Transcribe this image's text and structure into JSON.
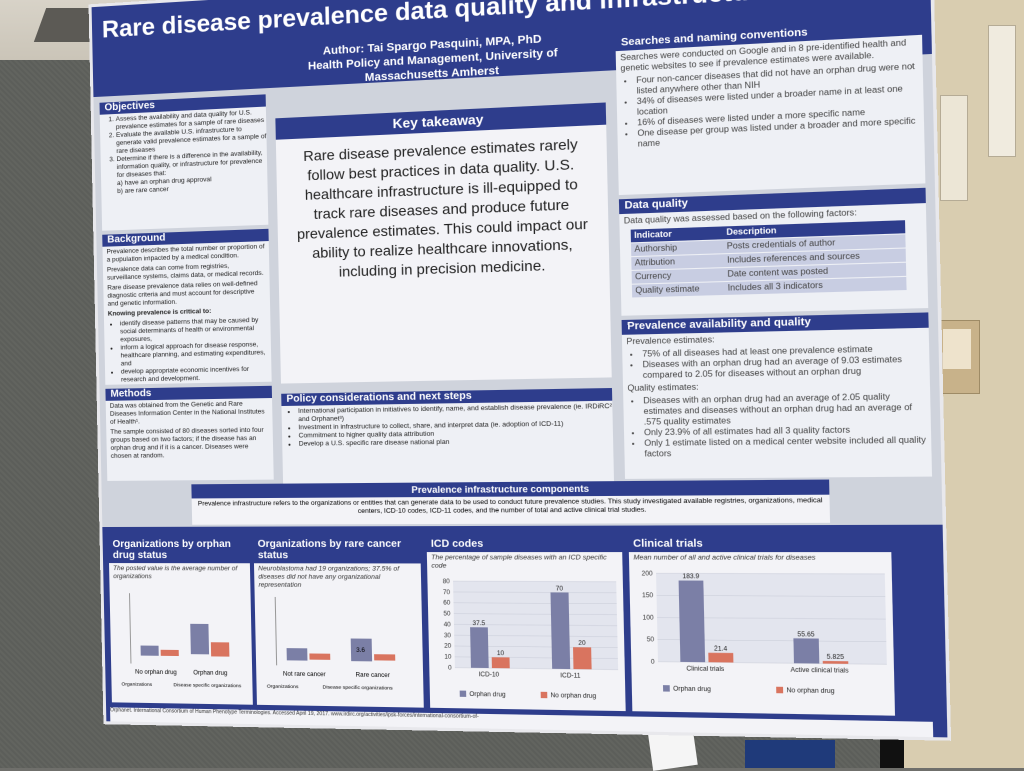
{
  "poster": {
    "title": "Rare disease prevalence data quality and infrastructure in the United States",
    "author": "Author: Tai Spargo Pasquini, MPA, PhD",
    "affiliation": "Health Policy and Management, University of Massachusetts Amherst"
  },
  "objectives": {
    "heading": "Objectives",
    "items": [
      "Assess the availability and data quality for U.S. prevalence estimates for a sample of rare diseases",
      "Evaluate the available U.S. infrastructure to generate valid prevalence estimates for a sample of rare diseases",
      "Determine if there is a difference in the availability, information quality, or infrastructure for prevalence for diseases that:",
      "a) have an orphan drug approval",
      "b) are rare cancer"
    ]
  },
  "background": {
    "heading": "Background",
    "paragraphs": [
      "Prevalence describes the total number or proportion of a population impacted by a medical condition.",
      "Prevalence data can come from registries, surveillance systems, claims data, or medical records.",
      "Rare disease prevalence data relies on well-defined diagnostic criteria and must account for descriptive and genetic information.",
      "Knowing prevalence is critical to:"
    ],
    "bullets": [
      "identify disease patterns that may be caused by social determinants of health or environmental exposures,",
      "inform a logical approach for disease response, healthcare planning, and estimating expenditures, and",
      "develop appropriate economic incentives for research and development."
    ]
  },
  "methods": {
    "heading": "Methods",
    "paragraphs": [
      "Data was obtained from the Genetic and Rare Diseases Information Center in the National Institutes of Health¹.",
      "The sample consisted of 80 diseases sorted into four groups based on two factors; if the disease has an orphan drug and if it is a cancer. Diseases were chosen at random."
    ]
  },
  "key_takeaway": {
    "heading": "Key takeaway",
    "text": "Rare disease prevalence estimates rarely follow best practices in data quality. U.S. healthcare infrastructure is ill-equipped to track rare diseases and produce future prevalence estimates. This could impact our ability to realize healthcare innovations, including in precision medicine."
  },
  "policy": {
    "heading": "Policy considerations and next steps",
    "items": [
      "International participation in initiatives to identify, name, and establish disease prevalence (ie. IRDiRC² and Orphanet³)",
      "Investment in infrastructure to collect, share, and interpret data (ie. adoption of ICD-11)",
      "Commitment to higher quality data attribution",
      "Develop a U.S. specific rare disease national plan"
    ]
  },
  "searches": {
    "heading": "Searches and naming conventions",
    "intro": "Searches were conducted on Google and in 8 pre-identified health and genetic websites to see if prevalence estimates were available.",
    "items": [
      "Four non-cancer diseases that did not have an orphan drug were not listed anywhere other than NIH",
      "34% of diseases were listed under a broader name in at least one location",
      "16% of diseases were listed under a more specific name",
      "One disease per group was listed under a broader and more specific name"
    ]
  },
  "data_quality": {
    "heading": "Data quality",
    "intro": "Data quality was assessed based on the following factors:",
    "columns": [
      "Indicator",
      "Description"
    ],
    "rows": [
      [
        "Authorship",
        "Posts credentials of author"
      ],
      [
        "Attribution",
        "Includes references and sources"
      ],
      [
        "Currency",
        "Date content was posted"
      ],
      [
        "Quality estimate",
        "Includes all 3 indicators"
      ]
    ]
  },
  "availability": {
    "heading": "Prevalence availability and quality",
    "label1": "Prevalence estimates:",
    "items1": [
      "75% of all diseases had at least one prevalence estimate",
      "Diseases with an orphan drug had an average of 9.03 estimates compared to 2.05 for diseases without an orphan drug"
    ],
    "label2": "Quality estimates:",
    "items2": [
      "Diseases with an orphan drug had an average of 2.05 quality estimates and diseases without an orphan drug had an average of .575 quality estimates",
      "Only 23.9% of all estimates had all 3 quality factors",
      "Only 1 estimate listed on a medical center website included all quality factors"
    ]
  },
  "infrastructure": {
    "heading": "Prevalence infrastructure components",
    "text": "Prevalence infrastructure refers to the organizations or entities that can generate data to be used to conduct future prevalence studies. This study investigated available registries, organizations, medical centers, ICD-10 codes, ICD-11 codes, and the number of total and active clinical trial studies."
  },
  "charts": {
    "orgs_orphan": {
      "heading": "Organizations by orphan drug status",
      "note": "The posted value is the average number of organizations",
      "groups": [
        "No orphan drug",
        "Orphan drug"
      ],
      "legend": [
        "Organizations",
        "Disease specific organizations"
      ]
    },
    "orgs_cancer": {
      "heading": "Organizations by rare cancer status",
      "note": "Neuroblastoma had 19 organizations; 37.5% of diseases did not have any organizational representation",
      "groups": [
        "Not rare cancer",
        "Rare cancer"
      ],
      "legend": [
        "Organizations",
        "Disease specific organizations"
      ],
      "value_label": "3.6"
    }
  },
  "chart_data": [
    {
      "type": "bar",
      "title": "ICD codes",
      "subtitle": "The percentage of sample diseases with an ICD specific code",
      "categories": [
        "ICD-10",
        "ICD-11"
      ],
      "series": [
        {
          "name": "Orphan drug",
          "values": [
            37.5,
            70
          ],
          "color": "#7b7fa6"
        },
        {
          "name": "No orphan drug",
          "values": [
            10,
            20
          ],
          "color": "#d9745f"
        }
      ],
      "ylim": [
        0,
        80
      ],
      "yticks": [
        "0",
        "10",
        "20",
        "30",
        "40",
        "50",
        "60",
        "70",
        "80"
      ],
      "value_labels": [
        [
          "37.5",
          "70"
        ],
        [
          "10",
          "20"
        ]
      ]
    },
    {
      "type": "bar",
      "title": "Clinical trials",
      "subtitle": "Mean number of all and active clinical trials for diseases",
      "categories": [
        "Clinical trials",
        "Active clinical trials"
      ],
      "series": [
        {
          "name": "Orphan drug",
          "values": [
            183.9,
            55.65
          ],
          "color": "#7b7fa6"
        },
        {
          "name": "No orphan drug",
          "values": [
            21.4,
            5.825
          ],
          "color": "#d9745f"
        }
      ],
      "ylim": [
        0,
        200
      ],
      "yticks": [
        "0",
        "50",
        "100",
        "150",
        "200"
      ],
      "value_labels": [
        [
          "183.9",
          "55.65"
        ],
        [
          "21.4",
          "5.825"
        ]
      ]
    }
  ],
  "footer": "Orphanet. International Consortium of Human Phenotype Terminologies. Accessed April 19, 2017. www.irdirc.org/activities/ipsk-forces/international-consortium-of-"
}
